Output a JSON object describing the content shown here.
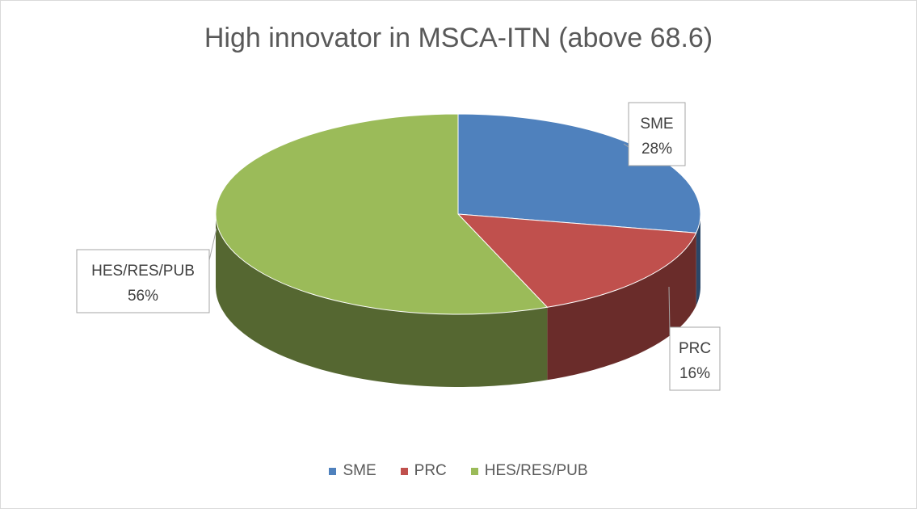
{
  "chart_data": {
    "type": "pie",
    "title": "High innovator in MSCA-ITN (above 68.6)",
    "categories": [
      "SME",
      "PRC",
      "HES/RES/PUB"
    ],
    "values": [
      28,
      16,
      56
    ],
    "labels": [
      "28%",
      "16%",
      "56%"
    ],
    "colors": [
      "#4f81bd",
      "#c0504d",
      "#9bbb59"
    ],
    "legend_position": "bottom",
    "style": "3d-pie"
  }
}
